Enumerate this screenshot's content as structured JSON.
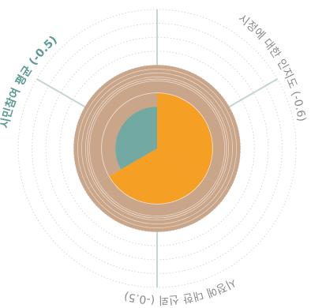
{
  "colors": {
    "background": "#ffffff",
    "grid": "#d2d2d2",
    "axis": "#c5d5d3",
    "outer_ring": "#c9a58a",
    "outer_ring_lines": "#f3e5d9",
    "orange": "#f5a024",
    "teal": "#72aaa3",
    "label_normal": "#8a8a8a",
    "label_highlight": "#5b9a92"
  },
  "chart_data": {
    "type": "radial",
    "title": "",
    "grid": true,
    "scale": [
      0,
      1
    ],
    "rings": 10,
    "axes": [
      {
        "label": "시정에 대한 인지도 (-0.6)",
        "value": 0.6,
        "highlight": false
      },
      {
        "label": "시정에 대한 신뢰 (-0.5)",
        "value": 0.5,
        "highlight": false
      },
      {
        "label": "시민참여 평균 (-0.5)",
        "value": 0.5,
        "highlight": true
      }
    ],
    "series": [
      {
        "name": "",
        "values": [
          0.6,
          0.6,
          0.6
        ],
        "color": "outer_ring"
      },
      {
        "name": "",
        "values": [
          0.4,
          0.4,
          0.3
        ],
        "color_sequence": [
          "orange",
          "orange",
          "teal"
        ]
      }
    ]
  }
}
